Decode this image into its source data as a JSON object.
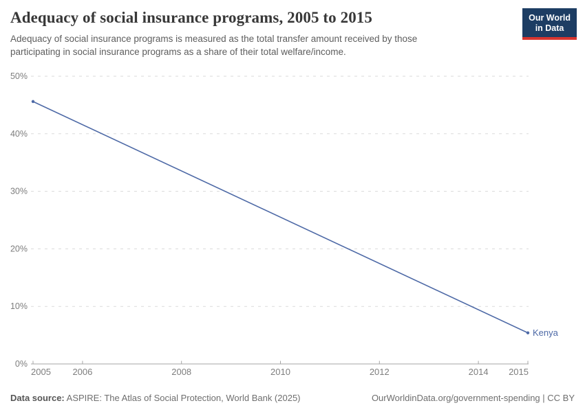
{
  "header": {
    "title": "Adequacy of social insurance programs, 2005 to 2015",
    "subtitle": "Adequacy of social insurance programs is measured as the total transfer amount received by those participating in social insurance programs as a share of their total welfare/income.",
    "logo": {
      "line1": "Our World",
      "line2": "in Data"
    }
  },
  "chart_data": {
    "type": "line",
    "title": "Adequacy of social insurance programs, 2005 to 2015",
    "x": [
      2005,
      2015
    ],
    "series": [
      {
        "name": "Kenya",
        "values": [
          45.6,
          5.4
        ],
        "color": "#4d69a6"
      }
    ],
    "xlabel": "",
    "ylabel": "",
    "xlim": [
      2005,
      2015
    ],
    "ylim": [
      0,
      50
    ],
    "x_ticks": [
      2005,
      2006,
      2008,
      2010,
      2012,
      2014,
      2015
    ],
    "x_tick_labels": [
      "2005",
      "2006",
      "2008",
      "2010",
      "2012",
      "2014",
      "2015"
    ],
    "y_ticks": [
      0,
      10,
      20,
      30,
      40,
      50
    ],
    "y_tick_labels": [
      "0%",
      "10%",
      "20%",
      "30%",
      "40%",
      "50%"
    ],
    "grid": "horizontal-dashed",
    "legend_position": "end-of-line-label",
    "end_label": "Kenya",
    "marker": "endpoint-dots"
  },
  "footer": {
    "datasource_label": "Data source:",
    "datasource_text": "ASPIRE: The Atlas of Social Protection, World Bank (2025)",
    "license_text": "OurWorldinData.org/government-spending | CC BY"
  },
  "colors": {
    "line": "#4d69a6",
    "grid": "#dadada",
    "axis": "#a5a5a5",
    "tick_label": "#7d7d7d",
    "logo_bg": "#1d3d63",
    "logo_stripe": "#d8352f",
    "title": "#383838",
    "subtitle": "#5d5d5d"
  }
}
